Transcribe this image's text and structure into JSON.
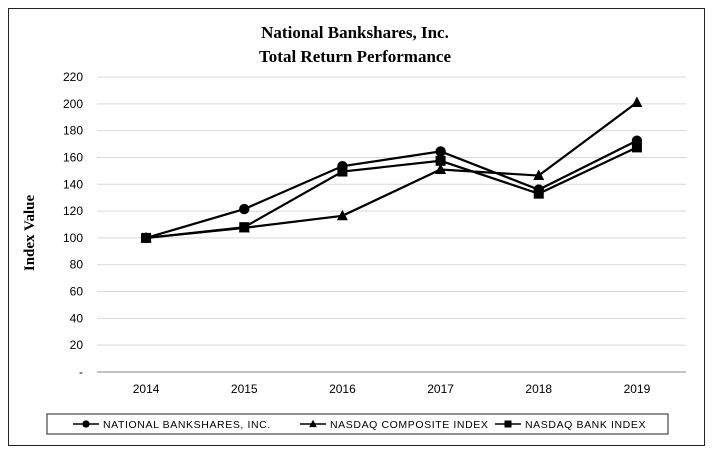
{
  "chart_data": {
    "type": "line",
    "title": [
      "National Bankshares, Inc.",
      "Total Return Performance"
    ],
    "ylabel": "Index Value",
    "xlabel": "",
    "categories": [
      "2014",
      "2015",
      "2016",
      "2017",
      "2018",
      "2019"
    ],
    "ylim": [
      0,
      220
    ],
    "yticks": [
      0,
      20,
      40,
      60,
      80,
      100,
      120,
      140,
      160,
      180,
      200,
      220
    ],
    "ytick_labels": [
      "-",
      "20",
      "40",
      "60",
      "80",
      "100",
      "120",
      "140",
      "160",
      "180",
      "200",
      "220"
    ],
    "grid": true,
    "legend_position": "bottom",
    "series": [
      {
        "name": "NATIONAL BANKSHARES, INC.",
        "marker": "circle",
        "color": "#000000",
        "values": [
          100,
          121.5,
          153.5,
          164.5,
          136,
          172.5
        ]
      },
      {
        "name": "NASDAQ COMPOSITE INDEX",
        "marker": "triangle",
        "color": "#000000",
        "values": [
          100,
          107.5,
          116.5,
          151,
          146.5,
          201
        ]
      },
      {
        "name": "NASDAQ BANK INDEX",
        "marker": "square",
        "color": "#000000",
        "values": [
          100,
          108,
          149.5,
          157.5,
          133,
          167.5
        ]
      }
    ]
  }
}
